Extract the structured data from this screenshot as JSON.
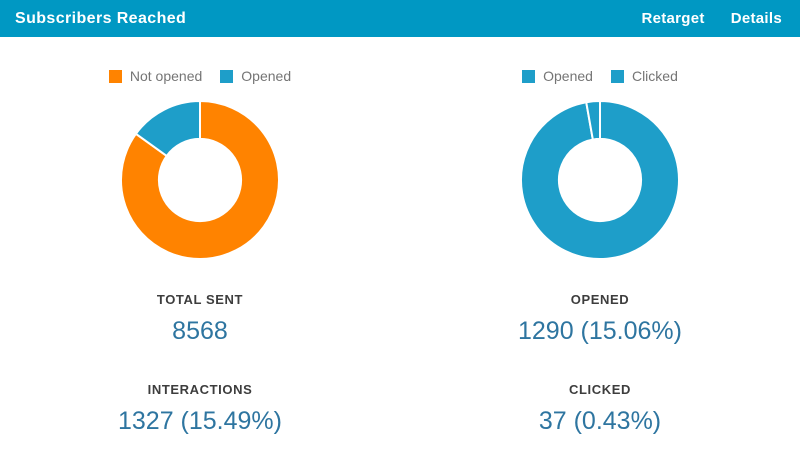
{
  "header": {
    "title": "Subscribers Reached",
    "actions": [
      {
        "label": "Retarget"
      },
      {
        "label": "Details"
      }
    ]
  },
  "chart_data": [
    {
      "type": "pie",
      "name": "sent-breakdown-donut",
      "labels": [
        "Not opened",
        "Opened"
      ],
      "values": [
        7278,
        1290
      ],
      "percentages": [
        84.94,
        15.06
      ],
      "colors": [
        "#ff8300",
        "#1e9ec9"
      ],
      "hole": 0.52,
      "start_angle_deg": 0,
      "direction": "clockwise",
      "legend_position": "top",
      "slice_stroke": "#ffffff"
    },
    {
      "type": "pie",
      "name": "engagement-breakdown-donut",
      "labels": [
        "Opened",
        "Clicked"
      ],
      "values": [
        1290,
        37
      ],
      "percentages": [
        97.21,
        2.79
      ],
      "colors": [
        "#1e9ec9",
        "#1e9ec9"
      ],
      "hole": 0.52,
      "start_angle_deg": 0,
      "direction": "clockwise",
      "legend_position": "top",
      "slice_stroke": "#ffffff"
    }
  ],
  "stats": {
    "left": [
      {
        "label": "TOTAL SENT",
        "value": "8568"
      },
      {
        "label": "INTERACTIONS",
        "value": "1327 (15.49%)"
      }
    ],
    "right": [
      {
        "label": "OPENED",
        "value": "1290 (15.06%)"
      },
      {
        "label": "CLICKED",
        "value": "37 (0.43%)"
      }
    ]
  },
  "colors": {
    "header_bg": "#0098c3",
    "header_text": "#ffffff",
    "orange": "#ff8300",
    "blue": "#1e9ec9",
    "value_text": "#2e75a0",
    "label_text": "#3d3d3d",
    "legend_text": "#757575"
  }
}
